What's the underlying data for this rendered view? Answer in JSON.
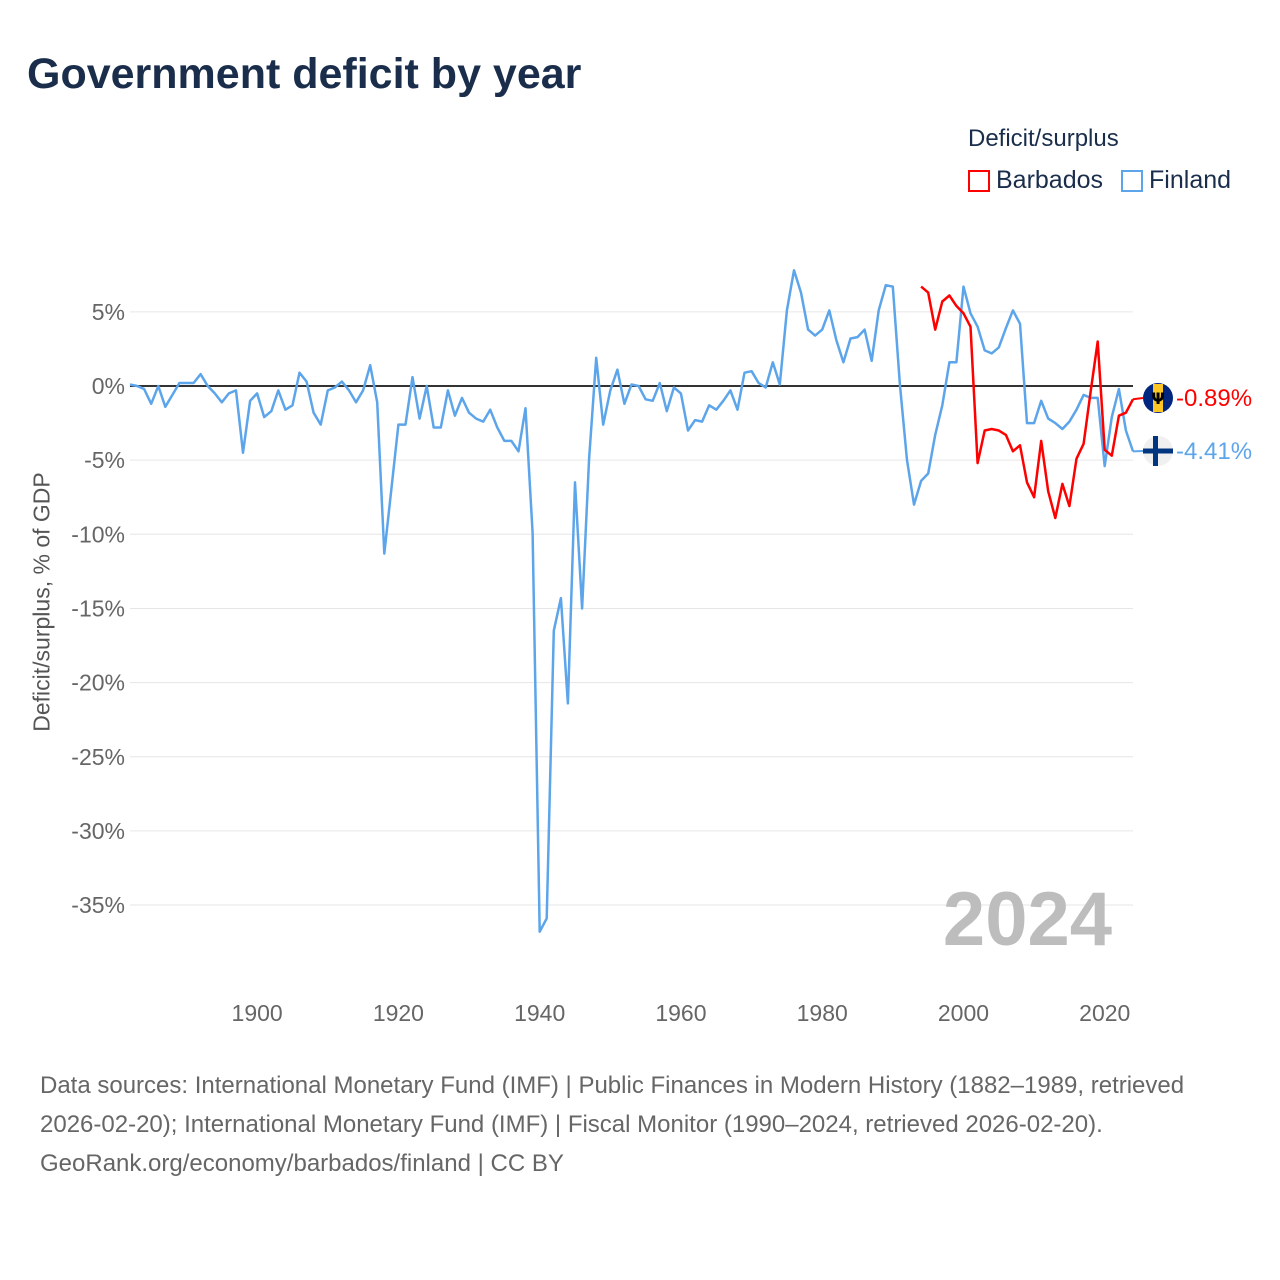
{
  "chart_data": {
    "type": "line",
    "title": "Government deficit by year",
    "xlabel": "",
    "ylabel": "Deficit/surplus, % of GDP",
    "xlim": [
      1882,
      2024
    ],
    "ylim": [
      -38,
      9
    ],
    "x_ticks": [
      1900,
      1920,
      1940,
      1960,
      1980,
      2000,
      2020
    ],
    "x_tick_labels": [
      "1900",
      "1920",
      "1940",
      "1960",
      "1980",
      "2000",
      "2020"
    ],
    "y_ticks": [
      5,
      0,
      -5,
      -10,
      -15,
      -20,
      -25,
      -30,
      -35
    ],
    "y_tick_labels": [
      "5%",
      "0%",
      "-5%",
      "-10%",
      "-15%",
      "-20%",
      "-25%",
      "-30%",
      "-35%"
    ],
    "grid": true,
    "legend_title": "Deficit/surplus",
    "legend_position": "top-right",
    "annotation_year": "2024",
    "series": [
      {
        "name": "Barbados",
        "color": "#ff0000",
        "start_year": 1994,
        "end_label": "-0.89%",
        "values": [
          6.7,
          6.3,
          3.8,
          5.7,
          6.1,
          5.4,
          4.9,
          4.0,
          -5.2,
          -3.0,
          -2.9,
          -3.0,
          -3.3,
          -4.4,
          -4.0,
          -6.5,
          -7.5,
          -3.7,
          -7.1,
          -8.9,
          -6.6,
          -8.1,
          -4.9,
          -3.9,
          -0.4,
          3.0,
          -4.3,
          -4.7,
          -2.0,
          -1.8,
          -0.89
        ]
      },
      {
        "name": "Finland",
        "color": "#5da5ea",
        "start_year": 1882,
        "end_label": "-4.41%",
        "values": [
          0.1,
          0,
          -0.2,
          -1.2,
          0,
          -1.4,
          -0.6,
          0.2,
          0.2,
          0.2,
          0.8,
          0,
          -0.5,
          -1.1,
          -0.5,
          -0.3,
          -4.5,
          -1.0,
          -0.5,
          -2.1,
          -1.7,
          -0.3,
          -1.6,
          -1.3,
          0.9,
          0.3,
          -1.8,
          -2.6,
          -0.3,
          -0.1,
          0.3,
          -0.3,
          -1.1,
          -0.3,
          1.4,
          -1.1,
          -11.3,
          -7.0,
          -2.6,
          -2.6,
          0.6,
          -2.2,
          0,
          -2.8,
          -2.8,
          -0.3,
          -2.0,
          -0.8,
          -1.8,
          -2.2,
          -2.4,
          -1.6,
          -2.8,
          -3.7,
          -3.7,
          -4.4,
          -1.5,
          -9.9,
          -36.8,
          -35.9,
          -16.5,
          -14.3,
          -21.4,
          -6.5,
          -15.0,
          -4.9,
          1.9,
          -2.6,
          -0.3,
          1.1,
          -1.2,
          0.1,
          0,
          -0.9,
          -1.0,
          0.2,
          -1.7,
          -0.1,
          -0.5,
          -3.0,
          -2.3,
          -2.4,
          -1.3,
          -1.6,
          -1.0,
          -0.3,
          -1.6,
          0.9,
          1.0,
          0.2,
          -0.1,
          1.6,
          0.1,
          5.1,
          7.8,
          6.3,
          3.8,
          3.4,
          3.8,
          5.1,
          3.1,
          1.6,
          3.2,
          3.3,
          3.8,
          1.7,
          5.1,
          6.8,
          6.7,
          0.1,
          -5.0,
          -8.0,
          -6.4,
          -5.9,
          -3.3,
          -1.3,
          1.6,
          1.6,
          6.7,
          4.9,
          4.0,
          2.4,
          2.2,
          2.6,
          3.9,
          5.1,
          4.2,
          -2.5,
          -2.5,
          -1.0,
          -2.2,
          -2.5,
          -2.9,
          -2.4,
          -1.6,
          -0.6,
          -0.8,
          -0.8,
          -5.4,
          -2.1,
          -0.2,
          -3.0,
          -4.41
        ]
      }
    ]
  },
  "footer": {
    "sources": "Data sources: International Monetary Fund (IMF) | Public Finances in Modern History (1882–1989, retrieved 2026-02-20); International Monetary Fund (IMF) | Fiscal Monitor (1990–2024, retrieved 2026-02-20).",
    "credit": "GeoRank.org/economy/barbados/finland | CC BY"
  }
}
